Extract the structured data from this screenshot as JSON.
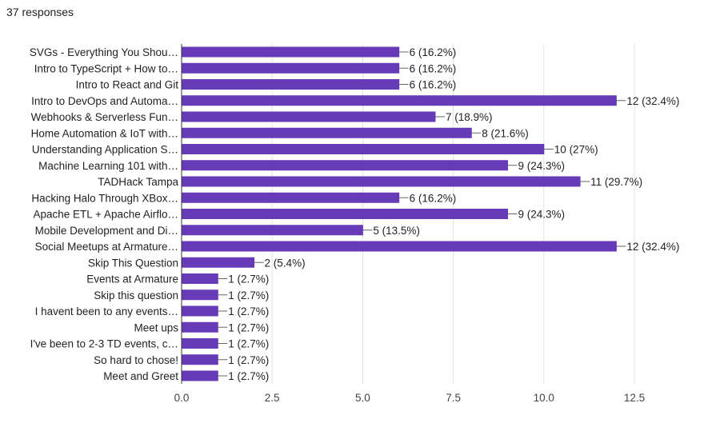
{
  "header": {
    "responses": "37 responses"
  },
  "chart_data": {
    "type": "bar",
    "orientation": "horizontal",
    "color": "#673ab7",
    "grid": true,
    "xlim": [
      0,
      12.5
    ],
    "xticks": [
      "0.0",
      "2.5",
      "5.0",
      "7.5",
      "10.0",
      "12.5"
    ],
    "categories": [
      "SVGs - Everything You Shou…",
      "Intro to TypeScript + How to…",
      "Intro to React and Git",
      "Intro to DevOps and Automa…",
      "Webhooks & Serverless Fun…",
      "Home Automation & IoT with…",
      "Understanding Application S…",
      "Machine Learning 101 with…",
      "TADHack Tampa",
      "Hacking Halo Through XBox…",
      "Apache ETL + Apache Airflo…",
      "Mobile Development and Di…",
      "Social Meetups at Armature…",
      "Skip This Question",
      "Events at Armature",
      "Skip this question",
      "I havent been to any events…",
      "Meet ups",
      "I've been to 2-3 TD events, c…",
      "So hard to chose!",
      "Meet and Greet"
    ],
    "values": [
      6,
      6,
      6,
      12,
      7,
      8,
      10,
      9,
      11,
      6,
      9,
      5,
      12,
      2,
      1,
      1,
      1,
      1,
      1,
      1,
      1
    ],
    "data_labels": [
      "6 (16.2%)",
      "6 (16.2%)",
      "6 (16.2%)",
      "12 (32.4%)",
      "7 (18.9%)",
      "8 (21.6%)",
      "10 (27%)",
      "9 (24.3%)",
      "11 (29.7%)",
      "6 (16.2%)",
      "9 (24.3%)",
      "5 (13.5%)",
      "12 (32.4%)",
      "2 (5.4%)",
      "1 (2.7%)",
      "1 (2.7%)",
      "1 (2.7%)",
      "1 (2.7%)",
      "1 (2.7%)",
      "1 (2.7%)",
      "1 (2.7%)"
    ]
  }
}
